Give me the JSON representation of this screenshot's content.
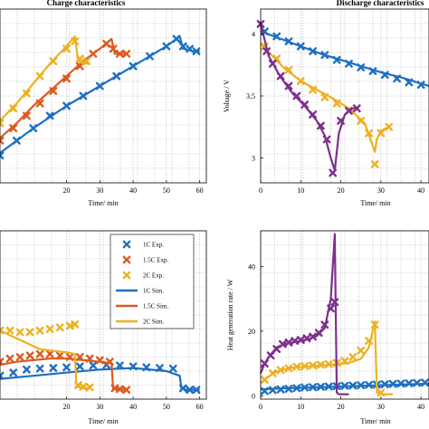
{
  "colors": {
    "c1": "#1f6fc0",
    "c15": "#dd5a1e",
    "c2": "#edb120",
    "disc2c": "#7e2f8e"
  },
  "chart_data": [
    {
      "id": "charge",
      "type": "line",
      "title": "Charge characteristics",
      "xlabel": "Time/ min",
      "ylabel": "",
      "xlim": [
        0,
        62
      ],
      "ylim": [
        3.6,
        4.3
      ],
      "xticks": [
        20,
        30,
        40,
        50,
        60
      ],
      "yticks": [],
      "grid": true,
      "series": [
        {
          "key": "1C Sim.",
          "color": "c1",
          "style": "line",
          "x": [
            0,
            10,
            20,
            30,
            40,
            50,
            54,
            55,
            58,
            60
          ],
          "y": [
            3.72,
            3.82,
            3.91,
            3.99,
            4.07,
            4.15,
            4.19,
            4.14,
            4.13,
            4.13
          ]
        },
        {
          "key": "1C Exp.",
          "color": "c1",
          "style": "marker",
          "x": [
            0,
            5,
            10,
            15,
            20,
            25,
            30,
            35,
            40,
            45,
            50,
            53,
            55,
            57,
            59
          ],
          "y": [
            3.71,
            3.77,
            3.82,
            3.87,
            3.91,
            3.95,
            3.99,
            4.03,
            4.07,
            4.11,
            4.15,
            4.18,
            4.15,
            4.14,
            4.13
          ]
        },
        {
          "key": "1.5C Sim.",
          "color": "c15",
          "style": "line",
          "x": [
            0,
            5,
            10,
            15,
            20,
            25,
            30,
            33.5,
            34.5,
            36,
            38
          ],
          "y": [
            3.78,
            3.84,
            3.91,
            3.97,
            4.03,
            4.09,
            4.14,
            4.18,
            4.12,
            4.12,
            4.12
          ]
        },
        {
          "key": "1.5C Exp.",
          "color": "c15",
          "style": "marker",
          "x": [
            0,
            4,
            8,
            12,
            16,
            20,
            24,
            28,
            32,
            34,
            36,
            38
          ],
          "y": [
            3.77,
            3.82,
            3.87,
            3.92,
            3.97,
            4.02,
            4.07,
            4.12,
            4.16,
            4.14,
            4.12,
            4.12
          ]
        },
        {
          "key": "2C Sim.",
          "color": "c2",
          "style": "line",
          "x": [
            0,
            5,
            10,
            15,
            20,
            22.5,
            23.5,
            25,
            27
          ],
          "y": [
            3.85,
            3.92,
            4.0,
            4.08,
            4.15,
            4.19,
            4.09,
            4.08,
            4.08
          ]
        },
        {
          "key": "2C Exp.",
          "color": "c2",
          "style": "marker",
          "x": [
            0,
            4,
            8,
            12,
            16,
            20,
            22.5,
            24,
            26
          ],
          "y": [
            3.84,
            3.9,
            3.96,
            4.03,
            4.09,
            4.14,
            4.17,
            4.1,
            4.09
          ]
        }
      ]
    },
    {
      "id": "discharge",
      "type": "line",
      "title": "Discharge characteristics",
      "xlabel": "Time/ min",
      "ylabel": "Voltage / V",
      "xlim": [
        0,
        42
      ],
      "ylim": [
        2.8,
        4.2
      ],
      "xticks": [
        0,
        10,
        20,
        30,
        40
      ],
      "yticks": [
        3,
        3.5,
        4
      ],
      "ytick_labels": [
        "3",
        "3.5",
        "4"
      ],
      "grid": true,
      "series": [
        {
          "key": "1C Sim.",
          "color": "c1",
          "style": "line",
          "x": [
            0,
            5,
            10,
            15,
            20,
            25,
            30,
            35,
            40,
            42
          ],
          "y": [
            4.02,
            3.96,
            3.9,
            3.84,
            3.79,
            3.74,
            3.69,
            3.65,
            3.6,
            3.58
          ]
        },
        {
          "key": "1C Exp.",
          "color": "c1",
          "style": "marker",
          "x": [
            1,
            4,
            7,
            10,
            13,
            16,
            19,
            22,
            25,
            28,
            31,
            34,
            37,
            40
          ],
          "y": [
            4.02,
            3.98,
            3.94,
            3.9,
            3.86,
            3.83,
            3.79,
            3.76,
            3.73,
            3.7,
            3.67,
            3.64,
            3.61,
            3.59
          ]
        },
        {
          "key": "2C Sim.",
          "color": "c2",
          "style": "line",
          "x": [
            0,
            3,
            6,
            10,
            14,
            18,
            22,
            26,
            28.5,
            29,
            30,
            32
          ],
          "y": [
            3.92,
            3.82,
            3.72,
            3.62,
            3.55,
            3.48,
            3.4,
            3.28,
            3.05,
            3.15,
            3.22,
            3.25
          ]
        },
        {
          "key": "2C Exp.",
          "color": "c2",
          "style": "marker",
          "x": [
            1,
            4,
            7,
            10,
            13,
            16,
            19,
            22,
            25,
            27,
            28.5,
            30,
            32
          ],
          "y": [
            3.9,
            3.8,
            3.71,
            3.62,
            3.55,
            3.49,
            3.44,
            3.38,
            3.3,
            3.2,
            2.95,
            3.2,
            3.25
          ]
        },
        {
          "key": "disc-3",
          "color": "disc2c",
          "style": "line",
          "x": [
            0,
            2,
            5,
            8,
            11,
            14,
            16,
            17.5,
            18.5,
            19.5,
            21,
            23,
            24
          ],
          "y": [
            4.08,
            3.82,
            3.65,
            3.52,
            3.42,
            3.3,
            3.18,
            3.0,
            2.9,
            3.2,
            3.35,
            3.4,
            3.4
          ]
        },
        {
          "key": "disc-3-exp",
          "color": "disc2c",
          "style": "marker",
          "x": [
            0,
            1.5,
            3,
            5,
            7,
            9,
            11,
            13,
            15,
            16.5,
            18,
            20,
            22,
            24
          ],
          "y": [
            4.08,
            3.86,
            3.76,
            3.66,
            3.58,
            3.5,
            3.43,
            3.35,
            3.26,
            3.15,
            2.88,
            3.3,
            3.38,
            3.4
          ]
        }
      ]
    },
    {
      "id": "heat-charge",
      "type": "line",
      "title": "",
      "xlabel": "Time/ min",
      "ylabel": "",
      "xlim": [
        0,
        62
      ],
      "ylim": [
        -2,
        52
      ],
      "xticks": [
        20,
        30,
        40,
        50,
        60
      ],
      "yticks": [],
      "grid": true,
      "legend": {
        "placement": "top-right",
        "entries": [
          {
            "label": "1C Exp.",
            "color": "c1",
            "style": "marker"
          },
          {
            "label": "1.5C Exp.",
            "color": "c15",
            "style": "marker"
          },
          {
            "label": "2C Exp.",
            "color": "c2",
            "style": "marker"
          },
          {
            "label": "1C Sim.",
            "color": "c1",
            "style": "line"
          },
          {
            "label": "1.5C Sim.",
            "color": "c15",
            "style": "line"
          },
          {
            "label": "2C Sim.",
            "color": "c2",
            "style": "line"
          }
        ]
      },
      "series": [
        {
          "key": "1C Sim.",
          "color": "c1",
          "style": "line",
          "x": [
            0,
            10,
            20,
            30,
            40,
            50,
            54,
            54.5,
            56,
            60
          ],
          "y": [
            4.5,
            5.5,
            6.5,
            7.5,
            8,
            7,
            5.5,
            1.5,
            1,
            1
          ]
        },
        {
          "key": "1C Exp.",
          "color": "c1",
          "style": "marker",
          "x": [
            0,
            4,
            8,
            12,
            16,
            20,
            24,
            28,
            32,
            36,
            40,
            44,
            48,
            52,
            55,
            57,
            59
          ],
          "y": [
            5.5,
            6.5,
            7.5,
            7.8,
            8,
            8.2,
            8.5,
            8.8,
            9,
            8.8,
            8.5,
            8.2,
            8,
            7.8,
            1.5,
            1,
            1
          ]
        },
        {
          "key": "1.5C Sim.",
          "color": "c15",
          "style": "line",
          "x": [
            0,
            5,
            10,
            15,
            20,
            25,
            30,
            33.5,
            34,
            36,
            38
          ],
          "y": [
            9,
            10,
            10.5,
            11,
            11,
            10.5,
            10,
            9.5,
            1.5,
            1.2,
            1
          ]
        },
        {
          "key": "1.5C Exp.",
          "color": "c15",
          "style": "marker",
          "x": [
            0,
            3,
            6,
            9,
            12,
            15,
            18,
            21,
            24,
            27,
            30,
            33,
            34.5,
            36,
            38
          ],
          "y": [
            10,
            11,
            11.5,
            12,
            12.5,
            12.5,
            12,
            11.5,
            11.5,
            11,
            10.5,
            10,
            1.5,
            1.2,
            1
          ]
        },
        {
          "key": "2C Sim.",
          "color": "c2",
          "style": "line",
          "x": [
            0,
            4,
            8,
            12,
            16,
            20,
            22.5,
            23,
            25,
            27
          ],
          "y": [
            20,
            18,
            16,
            14,
            13.5,
            13,
            12.5,
            2,
            1.5,
            1.5
          ]
        },
        {
          "key": "2C Exp.",
          "color": "c2",
          "style": "marker",
          "x": [
            0,
            3,
            6,
            9,
            12,
            15,
            18,
            21,
            22.5,
            23.5,
            25,
            27
          ],
          "y": [
            20,
            20,
            19.5,
            19.5,
            20,
            20.5,
            21,
            21.5,
            22,
            2.5,
            2,
            1.8
          ]
        }
      ]
    },
    {
      "id": "heat-discharge",
      "type": "line",
      "title": "",
      "xlabel": "Time/ min",
      "ylabel": "Heat generation rate / W",
      "xlim": [
        0,
        42
      ],
      "ylim": [
        -1,
        51
      ],
      "xticks": [
        0,
        10,
        20,
        30,
        40
      ],
      "yticks": [
        0,
        20,
        40
      ],
      "ytick_labels": [
        "0",
        "20",
        "40"
      ],
      "grid": true,
      "series": [
        {
          "key": "1C Sim.",
          "color": "c1",
          "style": "line",
          "x": [
            0,
            5,
            10,
            15,
            20,
            25,
            30,
            35,
            40,
            42
          ],
          "y": [
            2,
            2.3,
            2.5,
            2.7,
            2.9,
            3.1,
            3.3,
            3.5,
            3.7,
            3.8
          ]
        },
        {
          "key": "1C Exp.",
          "color": "c1",
          "style": "marker",
          "x": [
            1,
            3,
            5,
            7,
            9,
            11,
            13,
            15,
            17,
            19,
            21,
            23,
            25,
            27,
            29,
            31,
            33,
            35,
            37,
            39,
            41
          ],
          "y": [
            1.5,
            1.8,
            2,
            2.2,
            2.4,
            2.6,
            2.7,
            2.8,
            2.9,
            3,
            3.1,
            3.2,
            3.3,
            3.4,
            3.5,
            3.6,
            3.7,
            3.8,
            3.9,
            4,
            4.1
          ]
        },
        {
          "key": "2C Sim.",
          "color": "c2",
          "style": "line",
          "x": [
            0,
            2,
            4,
            6,
            8,
            10,
            14,
            18,
            22,
            25,
            27,
            28.5,
            29,
            30,
            33
          ],
          "y": [
            4,
            6,
            7.5,
            8.2,
            8.7,
            9,
            9.3,
            9.7,
            10.2,
            11.5,
            15,
            23,
            1,
            0.5,
            0.5
          ]
        },
        {
          "key": "2C Exp.",
          "color": "c2",
          "style": "marker",
          "x": [
            1,
            3,
            5,
            7,
            9,
            11,
            13,
            15,
            17,
            19,
            21,
            23,
            25,
            27,
            28.5,
            30
          ],
          "y": [
            5,
            7,
            8,
            8.5,
            9,
            9.2,
            9.4,
            9.6,
            9.8,
            10.2,
            10.8,
            12,
            14,
            17,
            22,
            1
          ]
        },
        {
          "key": "disc-3",
          "color": "disc2c",
          "style": "line",
          "x": [
            0,
            1,
            2,
            4,
            6,
            8,
            10,
            12,
            14,
            16,
            17.5,
            18.5,
            19,
            19.5,
            20,
            22
          ],
          "y": [
            7,
            10,
            12,
            15,
            16,
            16.5,
            17,
            17.5,
            18.5,
            21,
            30,
            50,
            1,
            0.5,
            0.5,
            0.5
          ]
        },
        {
          "key": "disc-3-exp",
          "color": "disc2c",
          "style": "marker",
          "x": [
            1,
            2.5,
            4,
            5.5,
            7,
            8.5,
            10,
            11.5,
            13,
            14.5,
            16,
            17.5,
            18.5
          ],
          "y": [
            10,
            12.5,
            14.5,
            16,
            16.5,
            17,
            17.3,
            17.8,
            18.3,
            19.5,
            22,
            27,
            29
          ]
        }
      ]
    }
  ]
}
